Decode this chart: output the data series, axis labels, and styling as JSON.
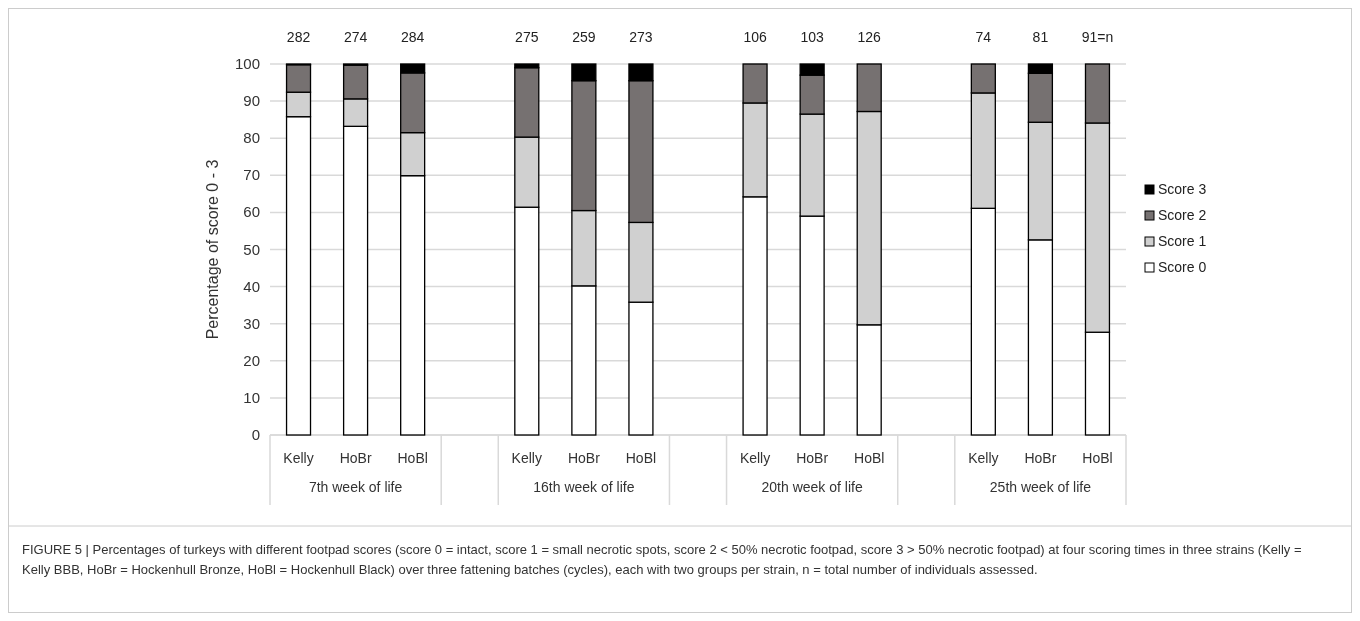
{
  "chart_data": {
    "type": "bar",
    "stacked": true,
    "categories": [
      "Kelly",
      "HoBr",
      "HoBl",
      null,
      "Kelly",
      "HoBr",
      "HoBl",
      null,
      "Kelly",
      "HoBr",
      "HoBl",
      null,
      "Kelly",
      "HoBr",
      "HoBl"
    ],
    "ylabel": "Percentage of score 0 - 3",
    "ylim": [
      0,
      100
    ],
    "yticks": [
      0,
      10,
      20,
      30,
      40,
      50,
      60,
      70,
      80,
      90,
      100
    ],
    "grid": "y",
    "legend": "right",
    "series": [
      {
        "name": "Score 0",
        "color": "#ffffff",
        "values": [
          85.8,
          83.2,
          69.9,
          null,
          61.4,
          40.2,
          35.8,
          null,
          64.2,
          59.0,
          29.7,
          null,
          61.1,
          52.6,
          27.7
        ]
      },
      {
        "name": "Score 1",
        "color": "#d0d0d0",
        "values": [
          6.6,
          7.4,
          11.6,
          null,
          18.9,
          20.3,
          21.5,
          null,
          25.3,
          27.5,
          57.5,
          null,
          31.1,
          31.7,
          56.4
        ]
      },
      {
        "name": "Score 2",
        "color": "#767171",
        "values": [
          7.4,
          9.1,
          16.1,
          null,
          18.7,
          35.0,
          38.2,
          null,
          10.5,
          10.5,
          12.8,
          null,
          7.8,
          13.2,
          15.9
        ]
      },
      {
        "name": "Score 3",
        "color": "#000000",
        "values": [
          0.2,
          0.3,
          2.4,
          null,
          1.0,
          4.5,
          4.5,
          null,
          0,
          3.0,
          0,
          null,
          0,
          2.5,
          0
        ]
      }
    ],
    "annotations": [
      "282",
      "274",
      "284",
      "275",
      "259",
      "273",
      "106",
      "103",
      "126",
      "74",
      "81",
      "91=n",
      "7th week of life",
      "16th week of life",
      "20th week of life",
      "25th week of life",
      "FIGURE 5 | Percentages of turkeys with different footpad scores (score 0 = intact, score 1 = small necrotic spots, score 2 < 50% necrotic footpad, score 3 > 50% necrotic footpad) at four scoring times in three strains (Kelly = Kelly BBB, HoBr = Hockenhull Bronze, HoBl = Hockenhull Black) over three fattening batches (cycles), each with two groups per strain, n = total number of individuals assessed."
    ]
  }
}
